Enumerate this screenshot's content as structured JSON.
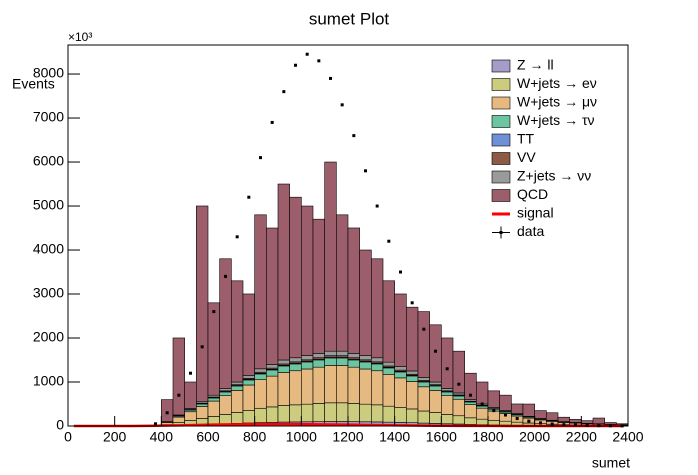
{
  "chart_data": {
    "type": "histogram",
    "title": "sumet Plot",
    "x_label": "sumet",
    "y_label": "Events",
    "y_multiplier": "×10³",
    "bins": [
      0,
      50,
      100,
      150,
      200,
      250,
      300,
      350,
      400,
      450,
      500,
      550,
      600,
      650,
      700,
      750,
      800,
      850,
      900,
      950,
      1000,
      1050,
      1100,
      1150,
      1200,
      1250,
      1300,
      1350,
      1400,
      1450,
      1500,
      1550,
      1600,
      1650,
      1700,
      1750,
      1800,
      1850,
      1900,
      1950,
      2000,
      2050,
      2100,
      2150,
      2200,
      2250,
      2300,
      2350,
      2400
    ],
    "xlim": [
      0,
      2400
    ],
    "xticks": [
      0,
      200,
      400,
      600,
      800,
      1000,
      1200,
      1400,
      1600,
      1800,
      2000,
      2200,
      2400
    ],
    "ylim": [
      0,
      8660
    ],
    "yticks": [
      0,
      1000,
      2000,
      3000,
      4000,
      5000,
      6000,
      7000,
      8000
    ],
    "stacked": true,
    "series": [
      {
        "name": "Z → ll",
        "color": "#a59cc8",
        "values": [
          0,
          0,
          0,
          0,
          0,
          0,
          0,
          0,
          6,
          15,
          24,
          33,
          42,
          51,
          60,
          69,
          78,
          84,
          90,
          93,
          96,
          99,
          102,
          102,
          99,
          96,
          93,
          87,
          81,
          75,
          66,
          60,
          51,
          45,
          36,
          30,
          25,
          21,
          17,
          13,
          10,
          8,
          6,
          5,
          4,
          3,
          2,
          2
        ]
      },
      {
        "name": "W+jets → eν",
        "color": "#cccc7f",
        "values": [
          0,
          0,
          0,
          0,
          0,
          0,
          0,
          0,
          25,
          63,
          100,
          138,
          175,
          213,
          250,
          288,
          325,
          350,
          375,
          388,
          400,
          413,
          425,
          425,
          413,
          400,
          388,
          363,
          338,
          313,
          275,
          250,
          213,
          188,
          150,
          125,
          105,
          88,
          70,
          55,
          43,
          33,
          25,
          20,
          15,
          13,
          10,
          8
        ]
      },
      {
        "name": "W+jets → μν",
        "color": "#e5b97f",
        "values": [
          0,
          0,
          0,
          0,
          0,
          0,
          0,
          0,
          50,
          125,
          200,
          275,
          350,
          425,
          500,
          575,
          650,
          700,
          750,
          775,
          800,
          825,
          850,
          850,
          825,
          800,
          775,
          725,
          675,
          625,
          550,
          500,
          425,
          375,
          300,
          250,
          210,
          175,
          140,
          110,
          85,
          65,
          50,
          40,
          30,
          25,
          20,
          15
        ]
      },
      {
        "name": "W+jets → τν",
        "color": "#6cc4a0",
        "values": [
          0,
          0,
          0,
          0,
          0,
          0,
          0,
          0,
          10,
          25,
          40,
          55,
          70,
          85,
          100,
          115,
          130,
          140,
          150,
          155,
          160,
          165,
          170,
          170,
          165,
          160,
          155,
          145,
          135,
          125,
          110,
          100,
          85,
          75,
          60,
          50,
          42,
          35,
          28,
          22,
          17,
          13,
          10,
          8,
          6,
          5,
          4,
          3
        ]
      },
      {
        "name": "TT",
        "color": "#6f8fd6",
        "values": [
          0,
          0,
          0,
          0,
          0,
          0,
          0,
          0,
          1,
          3,
          4,
          6,
          7,
          9,
          10,
          12,
          13,
          14,
          15,
          16,
          16,
          17,
          17,
          17,
          17,
          16,
          16,
          15,
          14,
          13,
          11,
          10,
          9,
          8,
          6,
          5,
          4,
          4,
          3,
          2,
          2,
          1,
          1,
          1,
          1,
          1,
          0,
          0
        ]
      },
      {
        "name": "VV",
        "color": "#8c5a46",
        "values": [
          0,
          0,
          0,
          0,
          0,
          0,
          0,
          0,
          2,
          5,
          8,
          11,
          14,
          17,
          20,
          23,
          26,
          28,
          30,
          31,
          32,
          33,
          34,
          34,
          33,
          32,
          31,
          29,
          27,
          25,
          22,
          20,
          17,
          15,
          12,
          10,
          8,
          7,
          6,
          4,
          3,
          3,
          2,
          2,
          1,
          1,
          1,
          1
        ]
      },
      {
        "name": "Z+jets → νν",
        "color": "#9a9a9a",
        "values": [
          0,
          0,
          0,
          0,
          0,
          0,
          0,
          0,
          6,
          15,
          24,
          33,
          42,
          51,
          60,
          69,
          78,
          84,
          90,
          93,
          96,
          99,
          102,
          102,
          99,
          96,
          93,
          87,
          81,
          75,
          66,
          60,
          51,
          45,
          36,
          30,
          25,
          21,
          17,
          13,
          10,
          8,
          6,
          5,
          4,
          3,
          2,
          2
        ]
      },
      {
        "name": "QCD",
        "color": "#9c5e6b",
        "values": [
          0,
          0,
          0,
          0,
          0,
          0,
          0,
          0,
          500,
          1750,
          600,
          4450,
          2100,
          2950,
          2300,
          1850,
          3500,
          3100,
          4000,
          3650,
          3400,
          3050,
          4300,
          3100,
          2850,
          2400,
          2250,
          1850,
          1650,
          1450,
          1500,
          1300,
          1150,
          950,
          600,
          500,
          380,
          350,
          220,
          280,
          180,
          170,
          100,
          70,
          60,
          130,
          40,
          20
        ]
      }
    ],
    "signal": {
      "name": "signal",
      "color": "#ff0000",
      "values": [
        0,
        0,
        0,
        0,
        0,
        0,
        2,
        5,
        10,
        15,
        20,
        25,
        30,
        35,
        38,
        40,
        42,
        43,
        43,
        42,
        40,
        38,
        35,
        32,
        28,
        24,
        20,
        17,
        14,
        11,
        9,
        7,
        5,
        4,
        3,
        2,
        2,
        1,
        1,
        1,
        0,
        0,
        0,
        0,
        0,
        0,
        0,
        0
      ]
    },
    "data": {
      "name": "data",
      "color": "#000000",
      "values": [
        0,
        0,
        0,
        0,
        0,
        0,
        0,
        50,
        300,
        700,
        1200,
        1800,
        2600,
        3400,
        4300,
        5200,
        6100,
        6900,
        7600,
        8200,
        8450,
        8300,
        7900,
        7300,
        6600,
        5800,
        5000,
        4200,
        3500,
        2800,
        2200,
        1700,
        1300,
        950,
        700,
        500,
        350,
        250,
        170,
        110,
        70,
        45,
        30,
        20,
        12,
        8,
        5,
        3
      ]
    },
    "legend": "top-right"
  }
}
